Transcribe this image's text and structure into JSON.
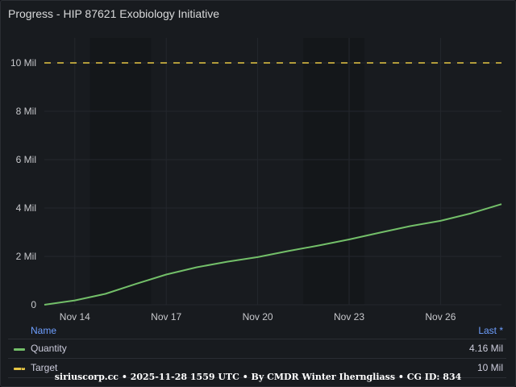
{
  "panel": {
    "title": "Progress - HIP 87621 Exobiology Initiative"
  },
  "legend": {
    "name_header": "Name",
    "last_header": "Last *",
    "rows": [
      {
        "name": "Quantity",
        "value": "4.16 Mil",
        "color": "#73bf69"
      },
      {
        "name": "Target",
        "value": "10 Mil",
        "color": "#e6c644"
      }
    ]
  },
  "footer": "siriuscorp.cc • 2025-11-28 1559 UTC • By CMDR Winter Iherngliass • CG ID: 834",
  "chart_data": {
    "type": "line",
    "x_ticks": [
      "Nov 14",
      "Nov 17",
      "Nov 20",
      "Nov 23",
      "Nov 26"
    ],
    "y_ticks": [
      "0",
      "2 Mil",
      "4 Mil",
      "6 Mil",
      "8 Mil",
      "10 Mil"
    ],
    "ylim": [
      0,
      10600000
    ],
    "xlim": [
      "2025-11-13",
      "2025-11-28"
    ],
    "grid": true,
    "legend_position": "bottom",
    "series": [
      {
        "name": "Quantity",
        "color": "#73bf69",
        "style": "solid",
        "x": [
          "2025-11-13",
          "2025-11-14",
          "2025-11-15",
          "2025-11-16",
          "2025-11-17",
          "2025-11-18",
          "2025-11-19",
          "2025-11-20",
          "2025-11-21",
          "2025-11-22",
          "2025-11-23",
          "2025-11-24",
          "2025-11-25",
          "2025-11-26",
          "2025-11-27",
          "2025-11-28"
        ],
        "values": [
          0,
          180000,
          450000,
          860000,
          1250000,
          1550000,
          1780000,
          1970000,
          2220000,
          2450000,
          2700000,
          2980000,
          3250000,
          3470000,
          3780000,
          4160000
        ]
      },
      {
        "name": "Target",
        "color": "#e6c644",
        "style": "dashed",
        "x": [
          "2025-11-13",
          "2025-11-28"
        ],
        "values": [
          10000000,
          10000000
        ]
      }
    ]
  }
}
